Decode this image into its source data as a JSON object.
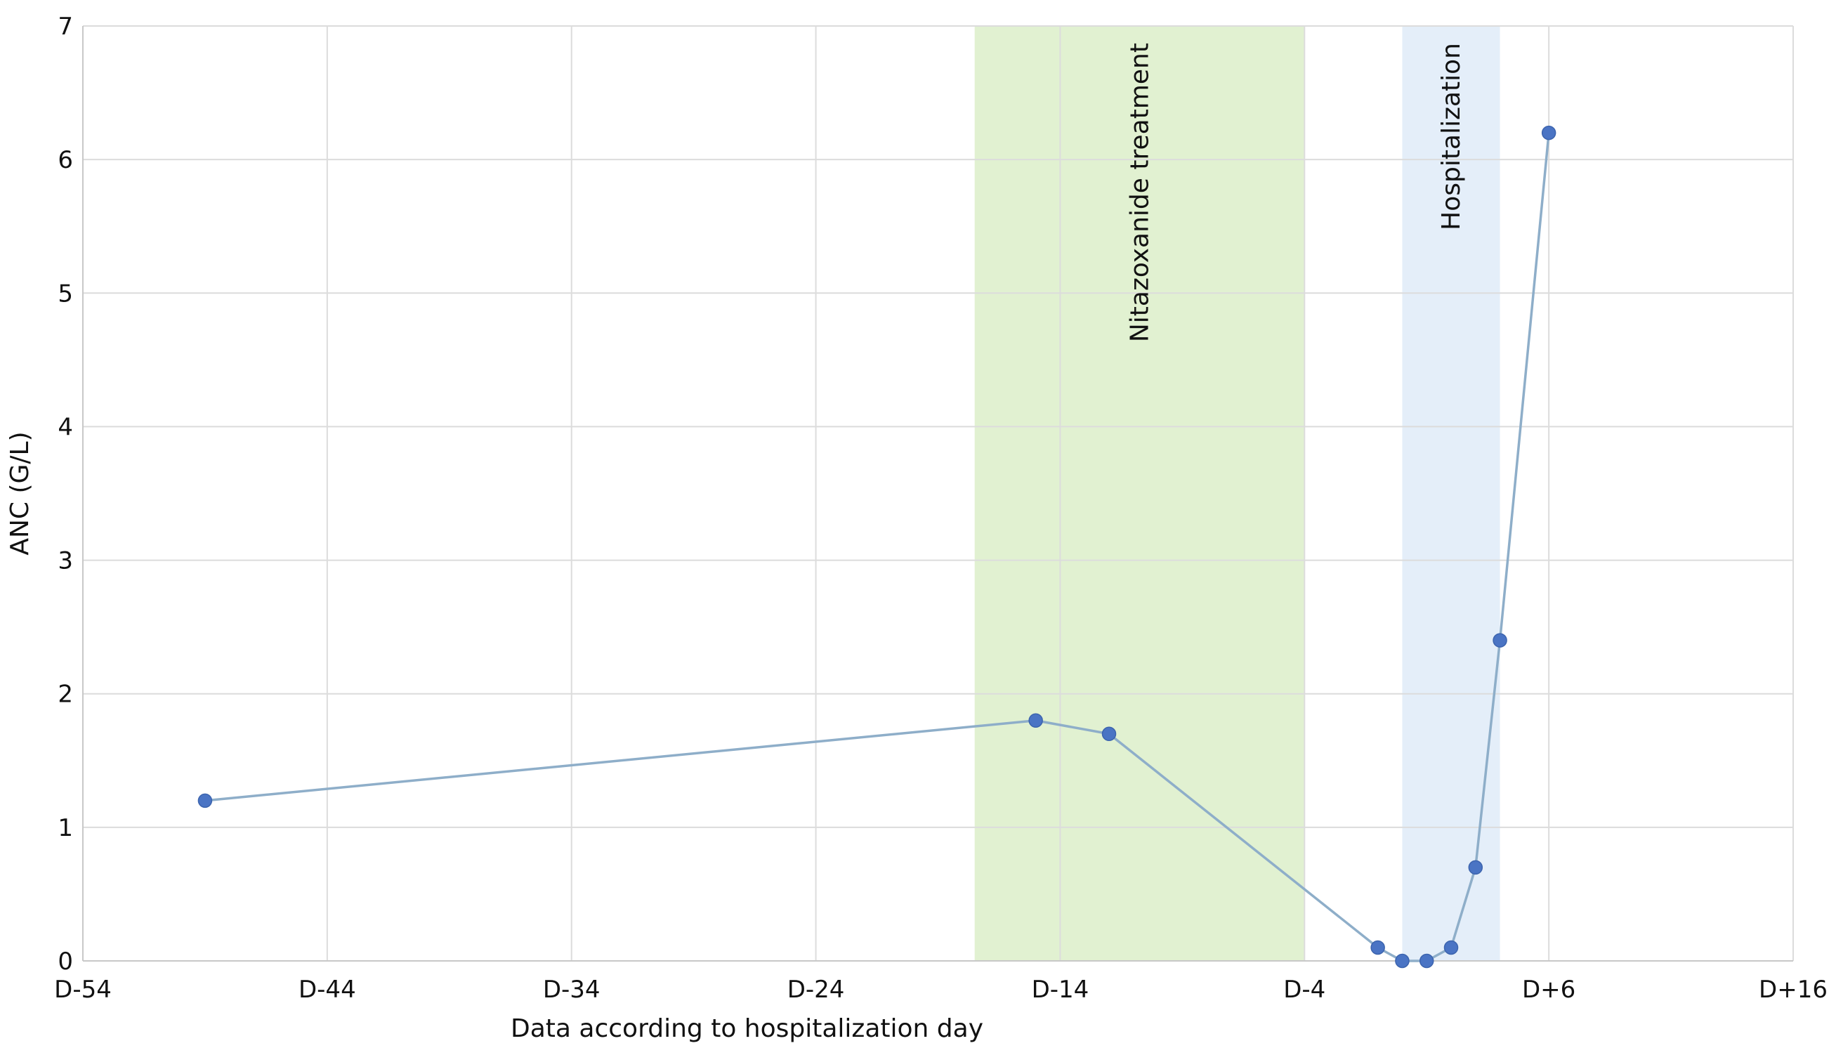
{
  "chart_data": {
    "type": "line",
    "xlabel": "Data according to hospitalization day",
    "ylabel": "ANC (G/L)",
    "xlim": [
      -54,
      16
    ],
    "ylim": [
      0,
      7
    ],
    "grid": true,
    "x_ticks": [
      {
        "value": -54,
        "label": "D-54"
      },
      {
        "value": -44,
        "label": "D-44"
      },
      {
        "value": -34,
        "label": "D-34"
      },
      {
        "value": -24,
        "label": "D-24"
      },
      {
        "value": -14,
        "label": "D-14"
      },
      {
        "value": -4,
        "label": "D-4"
      },
      {
        "value": 6,
        "label": "D+6"
      },
      {
        "value": 16,
        "label": "D+16"
      }
    ],
    "y_ticks": [
      {
        "value": 0,
        "label": "0"
      },
      {
        "value": 1,
        "label": "1"
      },
      {
        "value": 2,
        "label": "2"
      },
      {
        "value": 3,
        "label": "3"
      },
      {
        "value": 4,
        "label": "4"
      },
      {
        "value": 5,
        "label": "5"
      },
      {
        "value": 6,
        "label": "6"
      },
      {
        "value": 7,
        "label": "7"
      }
    ],
    "series": [
      {
        "color": "#4a74c4",
        "line_color": "#8eaec9",
        "points": [
          {
            "x": -49,
            "y": 1.2
          },
          {
            "x": -15,
            "y": 1.8
          },
          {
            "x": -12,
            "y": 1.7
          },
          {
            "x": -1,
            "y": 0.1
          },
          {
            "x": 0,
            "y": 0.0
          },
          {
            "x": 1,
            "y": 0.0
          },
          {
            "x": 2,
            "y": 0.1
          },
          {
            "x": 3,
            "y": 0.7
          },
          {
            "x": 4,
            "y": 2.4
          },
          {
            "x": 6,
            "y": 6.2
          }
        ]
      }
    ],
    "bands": [
      {
        "label": "Nitazoxanide treatment",
        "x_start": -17.5,
        "x_end": -4,
        "color": "#e1f1d1"
      },
      {
        "label": "Hospitalization",
        "x_start": 0,
        "x_end": 4,
        "color": "#e4eef9"
      }
    ]
  }
}
